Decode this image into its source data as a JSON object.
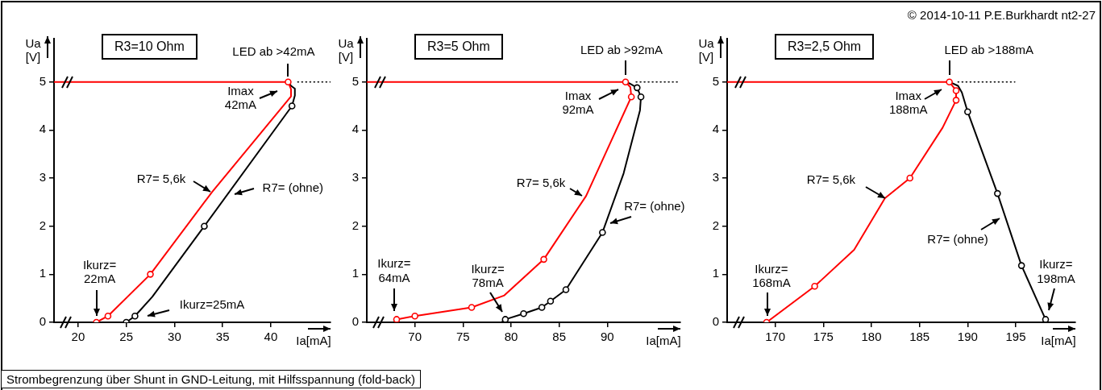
{
  "chart_data": [
    {
      "type": "line",
      "title": "R3=10 Ohm",
      "xlabel": "Ia[mA]",
      "ylabel": "Ua\n[V]",
      "xlim": [
        17.5,
        46.2
      ],
      "xticks": [
        20,
        25,
        30,
        35,
        40
      ],
      "ylim": [
        0,
        5.9
      ],
      "yticks": [
        0,
        1,
        2,
        3,
        4,
        5
      ],
      "series": [
        {
          "type": "line",
          "color": "#000000",
          "marker": "none",
          "line_style": "dotted",
          "x": [
            42.8,
            46.2
          ],
          "values": [
            5,
            5
          ]
        },
        {
          "type": "line",
          "color": "#000000",
          "marker": "none",
          "x": [
            25.0,
            25.9,
            27.7,
            33.1,
            42.2,
            42.5,
            42.5,
            42.1,
            41.8
          ],
          "values": [
            0,
            0.13,
            0.53,
            2.0,
            4.5,
            4.72,
            4.86,
            4.92,
            5
          ]
        },
        {
          "type": "scatter",
          "color": "#000000",
          "marker": "circle",
          "x": [
            25.0,
            25.9,
            33.1,
            42.2
          ],
          "values": [
            0,
            0.13,
            2.0,
            4.5
          ]
        },
        {
          "type": "line",
          "color": "#ff0000",
          "marker": "none",
          "x": [
            21.9,
            23.1,
            27.5,
            33.9,
            42.1,
            42.1,
            41.8,
            17.5
          ],
          "values": [
            0,
            0.13,
            1.0,
            2.71,
            4.7,
            4.85,
            5,
            5
          ]
        },
        {
          "type": "scatter",
          "color": "#ff0000",
          "marker": "circle",
          "x": [
            21.9,
            23.1,
            27.5,
            41.8
          ],
          "values": [
            0,
            0.13,
            1.0,
            5
          ]
        }
      ],
      "annotations": [
        {
          "text": "LED ab >42mA",
          "x": 41.8,
          "y": 5
        },
        {
          "text": "Imax\n42mA",
          "x": 41.8,
          "y": 5
        },
        {
          "text": "R7= 5,6k",
          "x": 33.9,
          "y": 2.71
        },
        {
          "text": "R7= (ohne)",
          "x": 36.1,
          "y": 2.66
        },
        {
          "text": "Ikurz=\n22mA",
          "x": 21.9,
          "y": 0
        },
        "Ikurz=25mA",
        "Strombegrenzung über Shunt in GND-Leitung, mit Hilfsspannung (fold-back)"
      ]
    },
    {
      "type": "line",
      "title": "R3=5 Ohm",
      "xlabel": "Ia[mA]",
      "ylabel": "Ua\n[V]",
      "xlim": [
        65,
        97.6
      ],
      "xticks": [
        70,
        75,
        80,
        85,
        90
      ],
      "ylim": [
        0,
        5.9
      ],
      "yticks": [
        0,
        1,
        2,
        3,
        4,
        5
      ],
      "series": [
        {
          "type": "line",
          "color": "#000000",
          "marker": "none",
          "line_style": "dotted",
          "x": [
            93.0,
            97.6
          ],
          "values": [
            5,
            5
          ]
        },
        {
          "type": "line",
          "color": "#000000",
          "marker": "none",
          "x": [
            79.0,
            79.4,
            81.3,
            83.2,
            84.1,
            85.7,
            89.5,
            91.7,
            93.4,
            93.5,
            93.1,
            92.3,
            91.9
          ],
          "values": [
            0,
            0.06,
            0.18,
            0.31,
            0.44,
            0.68,
            1.87,
            3.1,
            4.41,
            4.69,
            4.88,
            4.97,
            5
          ]
        },
        {
          "type": "scatter",
          "color": "#000000",
          "marker": "circle",
          "x": [
            79.4,
            81.3,
            83.2,
            84.1,
            85.7,
            89.5,
            93.5,
            93.1
          ],
          "values": [
            0.06,
            0.18,
            0.31,
            0.44,
            0.68,
            1.87,
            4.69,
            4.88
          ]
        },
        {
          "type": "line",
          "color": "#ff0000",
          "marker": "none",
          "x": [
            68.1,
            70.0,
            75.9,
            79.3,
            83.4,
            87.8,
            92.5,
            92.4,
            91.9,
            65
          ],
          "values": [
            0.06,
            0.13,
            0.31,
            0.56,
            1.31,
            2.63,
            4.69,
            4.89,
            5,
            5
          ]
        },
        {
          "type": "scatter",
          "color": "#ff0000",
          "marker": "circle",
          "x": [
            68.1,
            70.0,
            75.9,
            83.4,
            92.5,
            91.9
          ],
          "values": [
            0.06,
            0.13,
            0.31,
            1.31,
            4.69,
            5
          ]
        }
      ],
      "annotations": [
        {
          "text": "LED ab >92mA",
          "x": 91.9,
          "y": 5
        },
        {
          "text": "Imax\n92mA",
          "x": 91.9,
          "y": 5
        },
        {
          "text": "R7= 5,6k",
          "x": 87.8,
          "y": 2.63
        },
        {
          "text": "R7= (ohne)",
          "x": 90.3,
          "y": 2.06
        },
        {
          "text": "Ikurz=\n64mA",
          "x": 68.1,
          "y": 0.06
        },
        {
          "text": "Ikurz=\n78mA",
          "x": 79.0,
          "y": 0
        }
      ]
    },
    {
      "type": "line",
      "title": "R3=2,5 Ohm",
      "xlabel": "Ia[mA]",
      "ylabel": "Ua\n[V]",
      "xlim": [
        165,
        201.2
      ],
      "xticks": [
        170,
        175,
        180,
        185,
        190,
        195
      ],
      "ylim": [
        0,
        5.9
      ],
      "yticks": [
        0,
        1,
        2,
        3,
        4,
        5
      ],
      "series": [
        {
          "type": "line",
          "color": "#000000",
          "marker": "none",
          "line_style": "dotted",
          "x": [
            189.0,
            194.9
          ],
          "values": [
            5,
            5
          ]
        },
        {
          "type": "line",
          "color": "#000000",
          "marker": "none",
          "x": [
            188.1,
            189.0,
            189.4,
            190.0,
            193.1,
            195.6,
            198.1
          ],
          "values": [
            5,
            4.92,
            4.78,
            4.38,
            2.68,
            1.18,
            0.06
          ]
        },
        {
          "type": "scatter",
          "color": "#000000",
          "marker": "circle",
          "x": [
            190.0,
            193.1,
            195.6,
            198.1
          ],
          "values": [
            4.38,
            2.68,
            1.18,
            0.06
          ]
        },
        {
          "type": "line",
          "color": "#ff0000",
          "marker": "none",
          "x": [
            169.1,
            174.1,
            178.2,
            181.4,
            184.0,
            187.4,
            188.8,
            188.8,
            188.1,
            165
          ],
          "values": [
            0,
            0.75,
            1.51,
            2.58,
            3.0,
            4.05,
            4.62,
            4.82,
            5,
            5
          ]
        },
        {
          "type": "scatter",
          "color": "#ff0000",
          "marker": "circle",
          "x": [
            169.1,
            174.1,
            184.0,
            188.8,
            188.8,
            188.1
          ],
          "values": [
            0,
            0.75,
            3.0,
            4.62,
            4.82,
            5
          ]
        }
      ],
      "annotations": [
        {
          "text": "LED ab >188mA",
          "x": 188.1,
          "y": 5
        },
        {
          "text": "Imax\n188mA",
          "x": 188.1,
          "y": 5
        },
        {
          "text": "R7= 5,6k",
          "x": 181.5,
          "y": 2.58
        },
        {
          "text": "R7= (ohne)",
          "x": 194.0,
          "y": 2.14
        },
        {
          "text": "Ikurz=\n168mA",
          "x": 169.1,
          "y": 0
        },
        {
          "text": "Ikurz=\n198mA",
          "x": 198.1,
          "y": 0.06
        },
        "© 2014-10-11 P.E.Burkhardt nt2-27"
      ]
    }
  ]
}
